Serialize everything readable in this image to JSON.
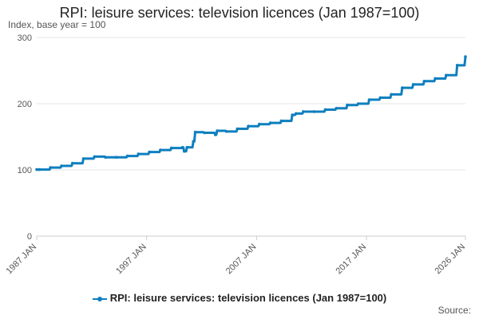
{
  "chart_data": {
    "type": "line",
    "title": "RPI: leisure services: television licences (Jan 1987=100)",
    "subtitle": "Index, base year = 100",
    "source_label": "Source:",
    "colors": {
      "series": "#0f7fbf",
      "grid": "#e6e6e6",
      "axis": "#cccccc"
    },
    "ylim": [
      0,
      300
    ],
    "y_ticks": [
      0,
      100,
      200,
      300
    ],
    "x_range": [
      "1987 JAN",
      "2026 JAN"
    ],
    "x_ticks": [
      "1987 JAN",
      "1997 JAN",
      "2007 JAN",
      "2017 JAN",
      "2026 JAN"
    ],
    "legend": {
      "position": "bottom"
    },
    "series": [
      {
        "name": "RPI: leisure services: television licences (Jan 1987=100)",
        "points": [
          [
            "1987-01",
            100.5
          ],
          [
            "1987-04",
            100.5
          ],
          [
            "1988-04",
            103.5
          ],
          [
            "1989-04",
            106
          ],
          [
            "1990-04",
            110
          ],
          [
            "1991-04",
            117
          ],
          [
            "1992-04",
            120
          ],
          [
            "1993-04",
            119
          ],
          [
            "1994-04",
            119
          ],
          [
            "1995-04",
            121
          ],
          [
            "1996-04",
            124
          ],
          [
            "1997-04",
            127
          ],
          [
            "1998-04",
            130
          ],
          [
            "1999-04",
            133
          ],
          [
            "2000-04",
            134
          ],
          [
            "2000-06",
            128
          ],
          [
            "2000-09",
            134
          ],
          [
            "2001-04",
            143
          ],
          [
            "2001-06",
            157
          ],
          [
            "2002-04",
            156
          ],
          [
            "2003-04",
            153
          ],
          [
            "2003-06",
            159
          ],
          [
            "2004-04",
            158
          ],
          [
            "2005-04",
            162
          ],
          [
            "2006-04",
            166
          ],
          [
            "2007-04",
            169
          ],
          [
            "2008-04",
            171
          ],
          [
            "2009-04",
            174
          ],
          [
            "2010-04",
            183
          ],
          [
            "2010-08",
            185
          ],
          [
            "2011-04",
            188
          ],
          [
            "2012-04",
            188
          ],
          [
            "2013-04",
            191
          ],
          [
            "2014-04",
            193
          ],
          [
            "2015-04",
            198
          ],
          [
            "2016-04",
            200
          ],
          [
            "2017-04",
            206
          ],
          [
            "2018-04",
            209
          ],
          [
            "2019-04",
            214
          ],
          [
            "2020-04",
            224
          ],
          [
            "2021-04",
            229
          ],
          [
            "2022-04",
            234
          ],
          [
            "2023-04",
            238
          ],
          [
            "2024-04",
            243
          ],
          [
            "2025-04",
            258
          ],
          [
            "2026-01",
            271
          ]
        ]
      }
    ]
  }
}
